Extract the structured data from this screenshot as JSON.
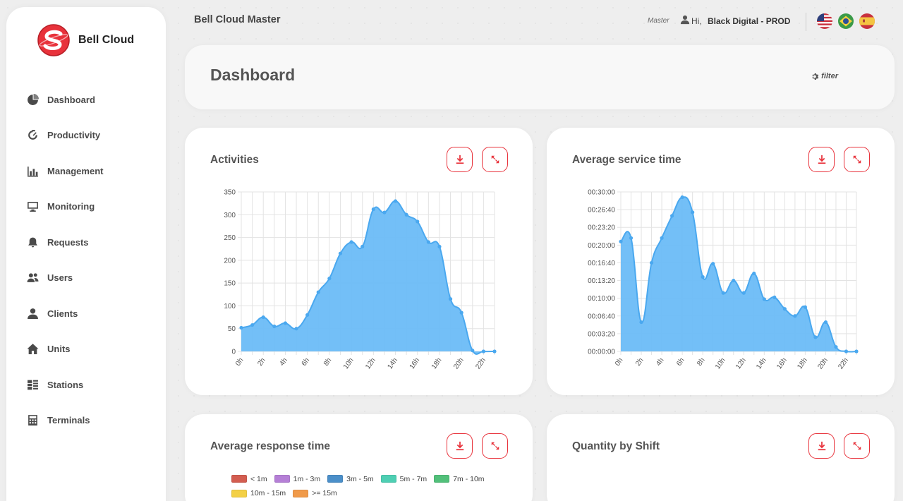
{
  "sidebar": {
    "brand": "Bell Cloud",
    "items": [
      {
        "label": "Dashboard",
        "icon": "dashboard-icon"
      },
      {
        "label": "Productivity",
        "icon": "productivity-icon"
      },
      {
        "label": "Management",
        "icon": "bar-chart-icon"
      },
      {
        "label": "Monitoring",
        "icon": "monitor-icon"
      },
      {
        "label": "Requests",
        "icon": "bell-icon"
      },
      {
        "label": "Users",
        "icon": "users-icon"
      },
      {
        "label": "Clients",
        "icon": "user-icon"
      },
      {
        "label": "Units",
        "icon": "home-icon"
      },
      {
        "label": "Stations",
        "icon": "stations-icon"
      },
      {
        "label": "Terminals",
        "icon": "calculator-icon"
      }
    ]
  },
  "header": {
    "app_title": "Bell Cloud Master",
    "role": "Master",
    "greeting": "Hi,",
    "user_name": "Black Digital - PROD",
    "flags": [
      "us-flag-icon",
      "brazil-flag-icon",
      "spain-flag-icon"
    ]
  },
  "dashboard": {
    "title": "Dashboard",
    "filter_label": "filter"
  },
  "colors": {
    "accent": "#e8323b",
    "chart_fill": "#6bbcf7",
    "chart_line": "#4aa8ef"
  },
  "cards": {
    "activities": {
      "title": "Activities"
    },
    "avg_service": {
      "title": "Average service time"
    },
    "avg_response": {
      "title": "Average response time"
    },
    "shift": {
      "title": "Quantity by Shift"
    }
  },
  "legend": [
    {
      "label": "< 1m",
      "color": "#d35d50"
    },
    {
      "label": "1m - 3m",
      "color": "#b57fd6"
    },
    {
      "label": "3m - 5m",
      "color": "#4b8fc9"
    },
    {
      "label": "5m - 7m",
      "color": "#4ecfb3"
    },
    {
      "label": "7m - 10m",
      "color": "#52c07a"
    },
    {
      "label": "10m - 15m",
      "color": "#f3d046"
    },
    {
      "label": ">= 15m",
      "color": "#f09a4a"
    }
  ],
  "chart_data": [
    {
      "type": "area",
      "x": [
        0,
        1,
        2,
        3,
        4,
        5,
        6,
        7,
        8,
        9,
        10,
        11,
        12,
        13,
        14,
        15,
        16,
        17,
        18,
        19,
        20,
        21,
        22,
        23
      ],
      "x_tick_labels": [
        "0h",
        "2h",
        "4h",
        "6h",
        "8h",
        "10h",
        "12h",
        "14h",
        "16h",
        "18h",
        "20h",
        "22h"
      ],
      "values": [
        52,
        58,
        75,
        55,
        62,
        50,
        80,
        130,
        160,
        215,
        240,
        230,
        312,
        305,
        330,
        300,
        285,
        240,
        230,
        115,
        85,
        2,
        0,
        0
      ],
      "ylim": [
        0,
        350
      ],
      "y_ticks": [
        "0",
        "50",
        "100",
        "150",
        "200",
        "250",
        "300",
        "350"
      ],
      "grid": true
    },
    {
      "type": "area",
      "x": [
        0,
        1,
        2,
        3,
        4,
        5,
        6,
        7,
        8,
        9,
        10,
        11,
        12,
        13,
        14,
        15,
        16,
        17,
        18,
        19,
        20,
        21,
        22,
        23
      ],
      "x_tick_labels": [
        "0h",
        "2h",
        "4h",
        "6h",
        "8h",
        "10h",
        "12h",
        "14h",
        "16h",
        "18h",
        "20h",
        "22h"
      ],
      "values_seconds": [
        1240,
        1280,
        330,
        1000,
        1280,
        1530,
        1740,
        1570,
        840,
        990,
        660,
        800,
        660,
        880,
        590,
        610,
        480,
        400,
        500,
        160,
        330,
        50,
        0,
        0
      ],
      "ylim": [
        0,
        1800
      ],
      "y_ticks": [
        "00:00:00",
        "00:03:20",
        "00:06:40",
        "00:10:00",
        "00:13:20",
        "00:16:40",
        "00:20:00",
        "00:23:20",
        "00:26:40",
        "00:30:00"
      ],
      "grid": true
    }
  ]
}
